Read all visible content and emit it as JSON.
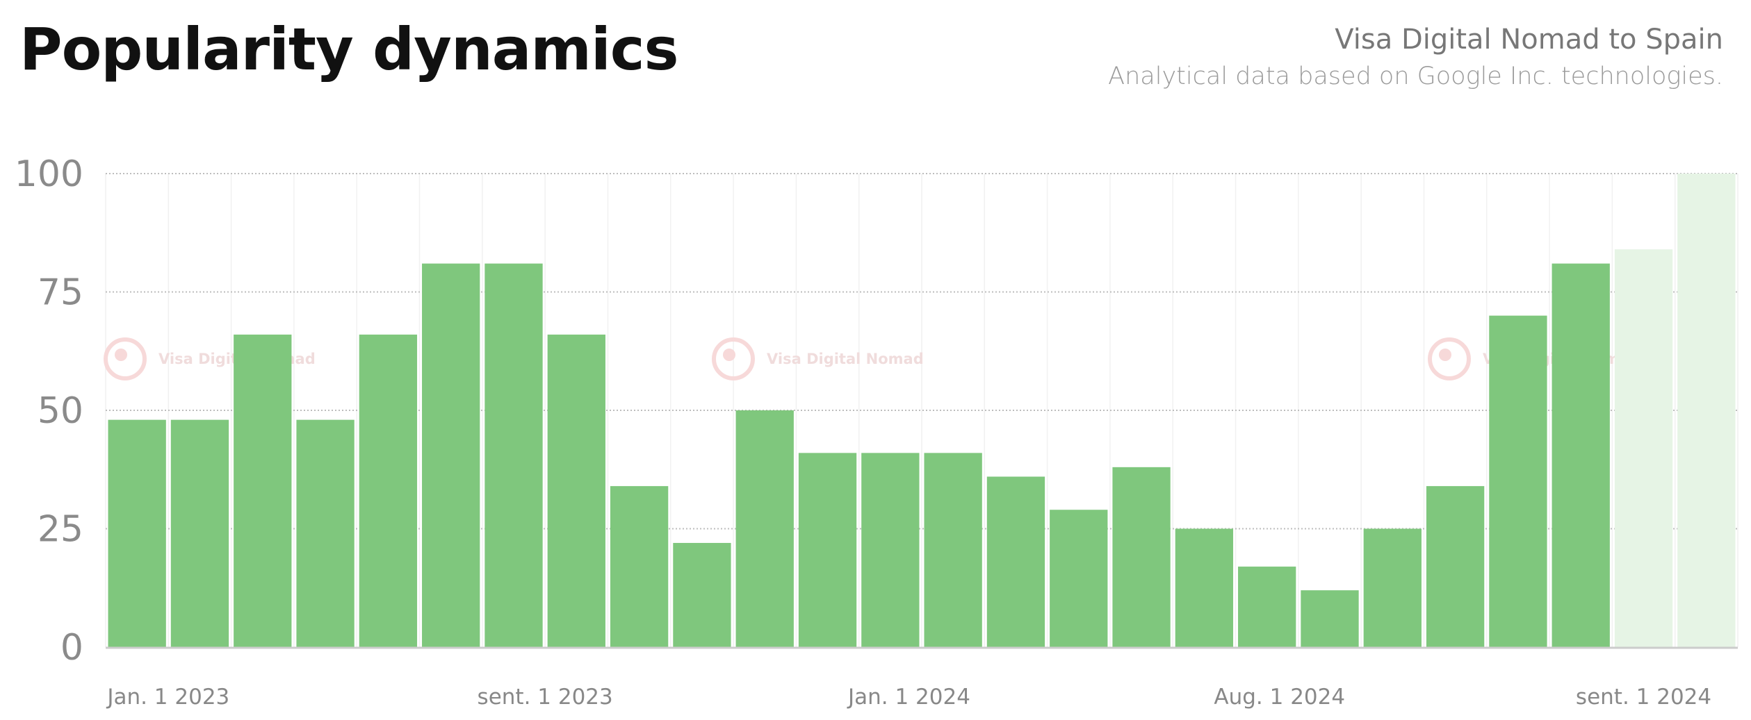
{
  "header": {
    "title": "Popularity dynamics",
    "subtitle": "Visa Digital Nomad to Spain",
    "source": "Analytical data based on Google Inc. technologies."
  },
  "watermark": {
    "label": "Visa Digital Nomad"
  },
  "colors": {
    "bar": "#7fc77d",
    "bar_forecast": "#e6f4e5",
    "grid": "#bdbdbd",
    "axis": "#cccccc"
  },
  "chart_data": {
    "type": "bar",
    "values": [
      48,
      48,
      66,
      48,
      66,
      81,
      81,
      66,
      34,
      22,
      50,
      41,
      41,
      41,
      36,
      29,
      38,
      25,
      17,
      12,
      25,
      34,
      70,
      81,
      84,
      100
    ],
    "forecast_from_index": 24,
    "ylim": [
      0,
      100
    ],
    "yticks": [
      "0",
      "25",
      "50",
      "75",
      "100"
    ],
    "xtick_labels": [
      {
        "label": "Jan. 1 2023",
        "at_bar": 1.5
      },
      {
        "label": "sent. 1 2023",
        "at_bar": 7.5
      },
      {
        "label": "Jan. 1 2024",
        "at_bar": 13.3
      },
      {
        "label": "Aug. 1 2024",
        "at_bar": 19.2
      },
      {
        "label": "sent. 1 2024",
        "at_bar": 25.0
      }
    ],
    "grid": true,
    "legend": "none",
    "title": "",
    "xlabel": "",
    "ylabel": ""
  }
}
